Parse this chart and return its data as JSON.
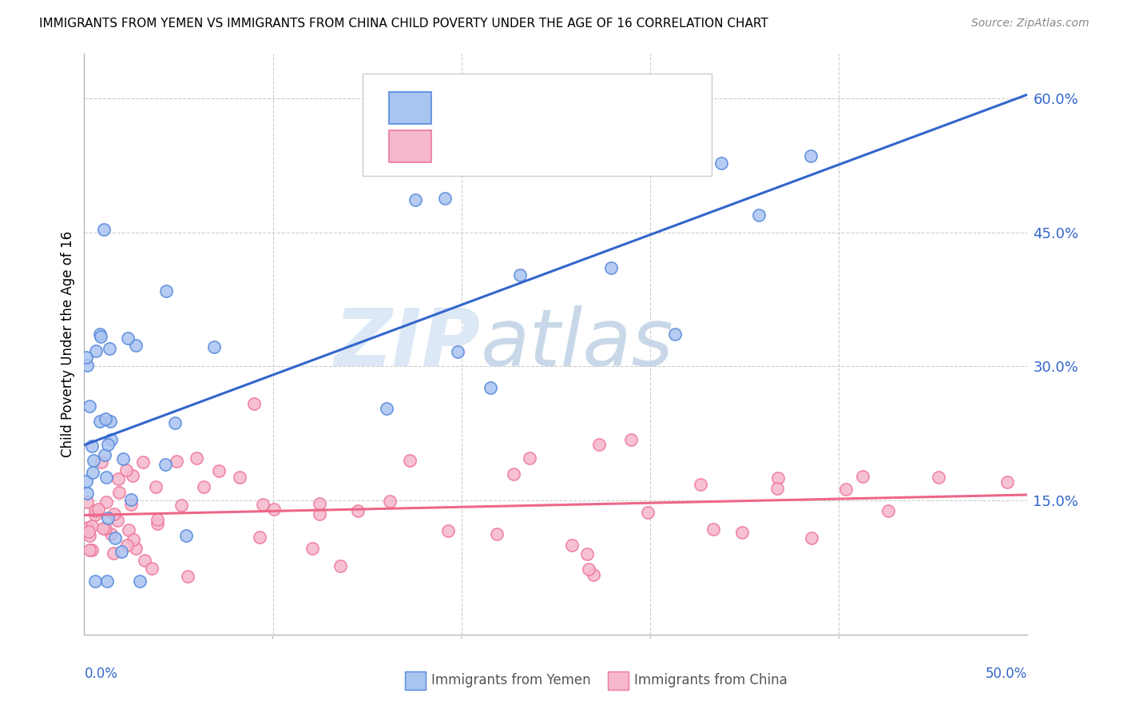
{
  "title": "IMMIGRANTS FROM YEMEN VS IMMIGRANTS FROM CHINA CHILD POVERTY UNDER THE AGE OF 16 CORRELATION CHART",
  "source": "Source: ZipAtlas.com",
  "ylabel": "Child Poverty Under the Age of 16",
  "right_yticks": [
    "60.0%",
    "45.0%",
    "30.0%",
    "15.0%"
  ],
  "right_ytick_vals": [
    0.6,
    0.45,
    0.3,
    0.15
  ],
  "xlim": [
    0.0,
    0.5
  ],
  "ylim": [
    0.0,
    0.65
  ],
  "yemen_color": "#aac4f0",
  "china_color": "#f5b8cc",
  "yemen_edge_color": "#5588dd",
  "china_edge_color": "#ee7799",
  "trend_yemen_color": "#3366cc",
  "trend_china_color": "#ee6688",
  "watermark_zip": "ZIP",
  "watermark_atlas": "atlas",
  "watermark_color_zip": "#dce8f5",
  "watermark_color_atlas": "#c8d8e8",
  "grid_color": "#cccccc",
  "axis_color": "#aaaaaa",
  "legend_text_color": "#3366cc",
  "legend_n_color": "#333333",
  "bottom_legend_color": "#555555"
}
